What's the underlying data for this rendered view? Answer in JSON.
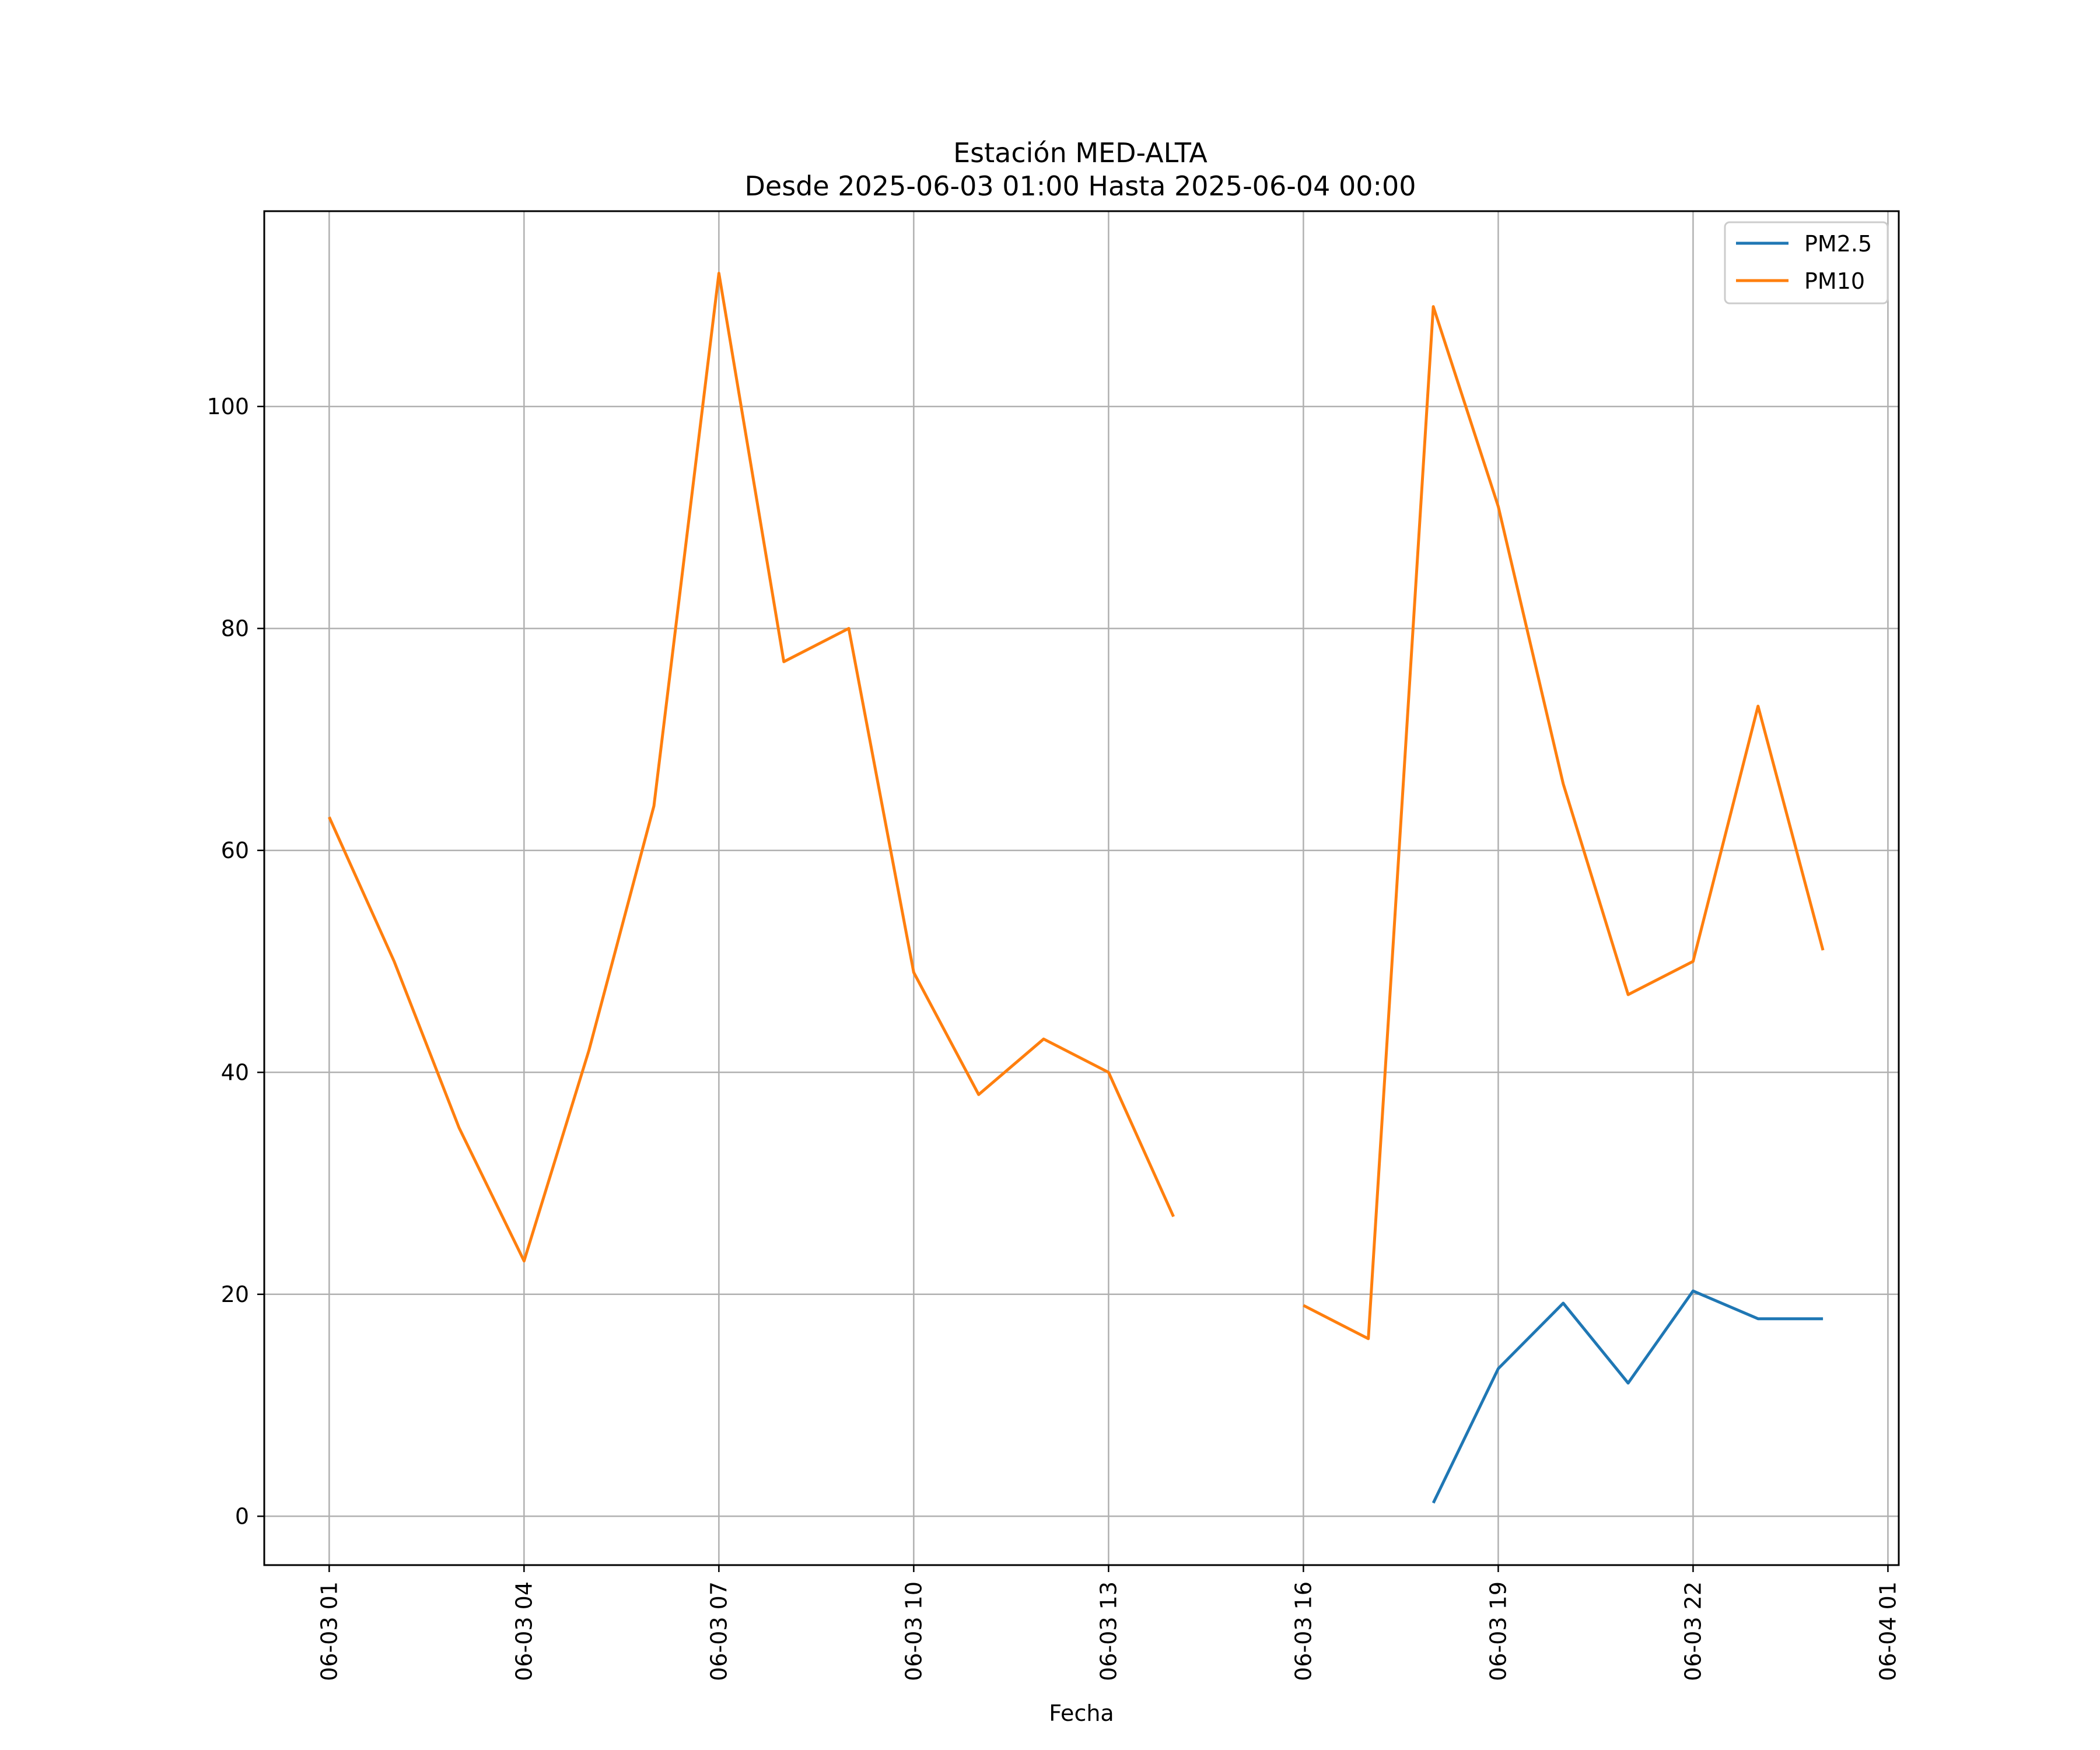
{
  "chart_data": {
    "type": "line",
    "title": "Estación MED-ALTA",
    "subtitle": "Desde 2025-06-03 01:00 Hasta 2025-06-04 00:00",
    "xlabel": "Fecha",
    "ylabel": "",
    "x": [
      "2025-06-03 01:00",
      "2025-06-03 02:00",
      "2025-06-03 03:00",
      "2025-06-03 04:00",
      "2025-06-03 05:00",
      "2025-06-03 06:00",
      "2025-06-03 07:00",
      "2025-06-03 08:00",
      "2025-06-03 09:00",
      "2025-06-03 10:00",
      "2025-06-03 11:00",
      "2025-06-03 12:00",
      "2025-06-03 13:00",
      "2025-06-03 14:00",
      "2025-06-03 15:00",
      "2025-06-03 16:00",
      "2025-06-03 17:00",
      "2025-06-03 18:00",
      "2025-06-03 19:00",
      "2025-06-03 20:00",
      "2025-06-03 21:00",
      "2025-06-03 22:00",
      "2025-06-03 23:00",
      "2025-06-04 00:00"
    ],
    "xlim": [
      "2025-06-03 00:00",
      "2025-06-04 01:10"
    ],
    "x_ticks": [
      "06-03 01",
      "06-03 04",
      "06-03 07",
      "06-03 10",
      "06-03 13",
      "06-03 16",
      "06-03 19",
      "06-03 22",
      "06-04 01"
    ],
    "x_tick_values": [
      "2025-06-03 01:00",
      "2025-06-03 04:00",
      "2025-06-03 07:00",
      "2025-06-03 10:00",
      "2025-06-03 13:00",
      "2025-06-03 16:00",
      "2025-06-03 19:00",
      "2025-06-03 22:00",
      "2025-06-04 01:00"
    ],
    "ylim": [
      -4.4,
      117.6
    ],
    "y_ticks": [
      0,
      20,
      40,
      60,
      80,
      100
    ],
    "grid": true,
    "legend_position": "top-right",
    "series": [
      {
        "name": "PM2.5",
        "color": "#1f77b4",
        "values": [
          null,
          null,
          null,
          null,
          null,
          null,
          null,
          null,
          null,
          null,
          null,
          null,
          null,
          null,
          null,
          null,
          null,
          1.2,
          13.3,
          19.2,
          12.0,
          20.3,
          17.8,
          17.8
        ]
      },
      {
        "name": "PM10",
        "color": "#ff7f0e",
        "values": [
          63,
          50,
          35,
          23,
          42,
          64,
          112,
          77,
          80,
          49,
          38,
          43,
          40,
          27,
          null,
          19,
          16,
          109,
          91,
          66,
          47,
          50,
          73,
          51
        ]
      }
    ]
  }
}
